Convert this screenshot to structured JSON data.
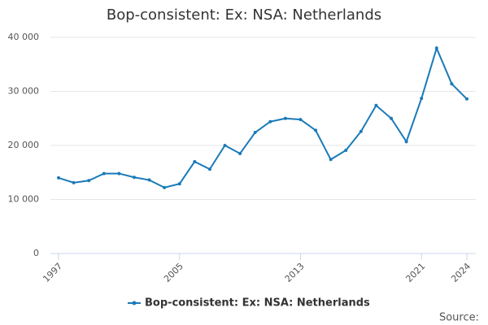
{
  "chart_data": {
    "type": "line",
    "title": "Bop-consistent: Ex: NSA: Netherlands",
    "source": "Source:",
    "x": [
      1997,
      1998,
      1999,
      2000,
      2001,
      2002,
      2003,
      2004,
      2005,
      2006,
      2007,
      2008,
      2009,
      2010,
      2011,
      2012,
      2013,
      2014,
      2015,
      2016,
      2017,
      2018,
      2019,
      2020,
      2021,
      2022,
      2023,
      2024
    ],
    "series": [
      {
        "name": "Bop-consistent: Ex: NSA: Netherlands",
        "color": "#1a7ab8",
        "values": [
          14000,
          13100,
          13500,
          14800,
          14800,
          14100,
          13600,
          12200,
          12900,
          17000,
          15600,
          20000,
          18500,
          22400,
          24400,
          25000,
          24800,
          22800,
          17400,
          19100,
          22600,
          27400,
          25000,
          20700,
          28700,
          38000,
          31400,
          28600
        ]
      }
    ],
    "xlim": [
      1997,
      2024
    ],
    "xticks": [
      1997,
      2005,
      2013,
      2021,
      2024
    ],
    "ylim": [
      0,
      40000
    ],
    "yticks": [
      0,
      {
        "value": 10000,
        "label": "10 000"
      },
      {
        "value": 20000,
        "label": "20 000"
      },
      {
        "value": 30000,
        "label": "30 000"
      },
      {
        "value": 40000,
        "label": "40 000"
      }
    ],
    "grid": true
  }
}
